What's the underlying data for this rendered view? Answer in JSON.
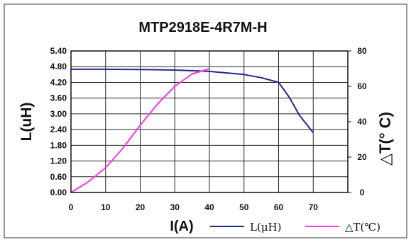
{
  "chart_data": {
    "type": "line",
    "title": "MTP2918E-4R7M-H",
    "xlabel": "I(A)",
    "ylabel_left": "L(uH)",
    "ylabel_right": "△T(° C)",
    "x_ticks": [
      0,
      10,
      20,
      30,
      40,
      50,
      60,
      70
    ],
    "x_tick_labels": [
      "0",
      "10",
      "20",
      "30",
      "40",
      "50",
      "60",
      "70"
    ],
    "y_left_ticks": [
      "0.00",
      "0.60",
      "1.20",
      "1.80",
      "2.40",
      "3.00",
      "3.60",
      "4.20",
      "4.80",
      "5.40"
    ],
    "y_right_ticks": [
      "0",
      "20",
      "40",
      "60",
      "80"
    ],
    "xlim": [
      0,
      80
    ],
    "ylim_left": [
      0,
      5.4
    ],
    "ylim_right": [
      0,
      80
    ],
    "grid": true,
    "legend_position": "bottom-right",
    "series": [
      {
        "name": "L(μH)",
        "axis": "left",
        "color": "#1f2a8a",
        "x": [
          0,
          10,
          20,
          30,
          40,
          50,
          55,
          60,
          63,
          66,
          70
        ],
        "y": [
          4.7,
          4.7,
          4.69,
          4.67,
          4.62,
          4.5,
          4.38,
          4.2,
          3.65,
          2.95,
          2.28
        ]
      },
      {
        "name": "△T(℃)",
        "axis": "right",
        "color": "#ff33ee",
        "x": [
          0,
          5,
          10,
          15,
          20,
          25,
          30,
          35,
          40
        ],
        "y": [
          0,
          6,
          14,
          25,
          38,
          50,
          60,
          67,
          70
        ]
      }
    ]
  }
}
